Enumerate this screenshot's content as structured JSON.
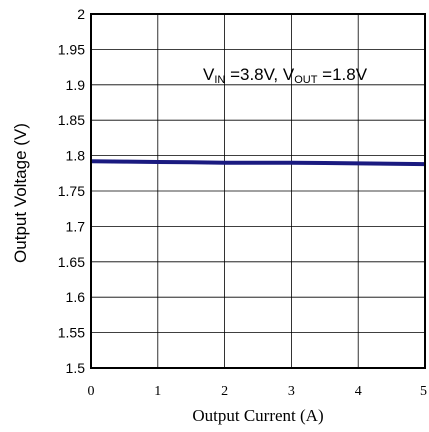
{
  "chart_data": {
    "type": "line",
    "xlabel": "Output Current (A)",
    "ylabel": "Output Voltage (V)",
    "xlim": [
      0,
      5
    ],
    "ylim": [
      1.5,
      2.0
    ],
    "x_ticks": [
      "0",
      "1",
      "2",
      "3",
      "4",
      "5"
    ],
    "y_ticks": [
      "2",
      "1.95",
      "1.9",
      "1.85",
      "1.8",
      "1.75",
      "1.7",
      "1.65",
      "1.6",
      "1.55",
      "1.5"
    ],
    "grid": true,
    "annotation": {
      "vin_main": "V",
      "vin_sub": "IN",
      "vin_value": " =3.8V, ",
      "vout_main": "V",
      "vout_sub": "OUT",
      "vout_value": " =1.8V"
    },
    "series": [
      {
        "color": "#1a1a80",
        "x": [
          0,
          0.5,
          1,
          1.5,
          2,
          2.5,
          3,
          3.5,
          4,
          4.5,
          5
        ],
        "y": [
          1.792,
          1.7915,
          1.791,
          1.7905,
          1.79,
          1.79,
          1.7898,
          1.7895,
          1.789,
          1.7885,
          1.788
        ]
      }
    ]
  }
}
